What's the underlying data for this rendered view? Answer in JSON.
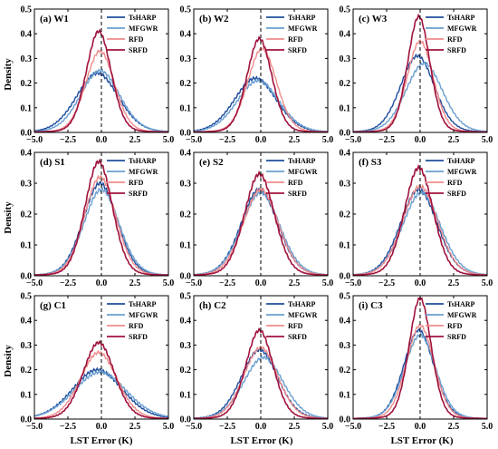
{
  "figure": {
    "ylabel": "Density",
    "xlabel": "LST Error (K)"
  },
  "series_styles": [
    {
      "name": "TsHARP",
      "color": "#1f4e9c"
    },
    {
      "name": "MFGWR",
      "color": "#6a9fd0"
    },
    {
      "name": "RFD",
      "color": "#f08c8c"
    },
    {
      "name": "SRFD",
      "color": "#a0123c"
    }
  ],
  "chart_data": [
    {
      "type": "line",
      "title": "(a) W1",
      "xlim": [
        -5,
        5
      ],
      "ylim": [
        0,
        0.5
      ],
      "xticks": [
        -5.0,
        -2.5,
        0.0,
        2.5,
        5.0
      ],
      "yticks": [
        0.0,
        0.1,
        0.2,
        0.3,
        0.4,
        0.5
      ],
      "legend": "top-right",
      "series": [
        {
          "name": "TsHARP",
          "peak": 0.24,
          "center": -0.3,
          "width": 1.6
        },
        {
          "name": "MFGWR",
          "peak": 0.25,
          "center": -0.1,
          "width": 1.5
        },
        {
          "name": "RFD",
          "peak": 0.33,
          "center": -0.1,
          "width": 1.1
        },
        {
          "name": "SRFD",
          "peak": 0.41,
          "center": -0.2,
          "width": 0.95
        }
      ]
    },
    {
      "type": "line",
      "title": "(b) W2",
      "xlim": [
        -5,
        5
      ],
      "ylim": [
        0,
        0.5
      ],
      "xticks": [
        -5.0,
        -2.5,
        0.0,
        2.5,
        5.0
      ],
      "yticks": [
        0.0,
        0.1,
        0.2,
        0.3,
        0.4,
        0.5
      ],
      "legend": "top-right",
      "series": [
        {
          "name": "TsHARP",
          "peak": 0.22,
          "center": -0.4,
          "width": 1.6
        },
        {
          "name": "MFGWR",
          "peak": 0.21,
          "center": -0.2,
          "width": 1.6
        },
        {
          "name": "RFD",
          "peak": 0.34,
          "center": 0.1,
          "width": 1.1
        },
        {
          "name": "SRFD",
          "peak": 0.38,
          "center": -0.1,
          "width": 0.95
        }
      ]
    },
    {
      "type": "line",
      "title": "(c) W3",
      "xlim": [
        -5,
        5
      ],
      "ylim": [
        0,
        0.5
      ],
      "xticks": [
        -5.0,
        -2.5,
        0.0,
        2.5,
        5.0
      ],
      "yticks": [
        0.0,
        0.1,
        0.2,
        0.3,
        0.4,
        0.5
      ],
      "legend": "top-right",
      "series": [
        {
          "name": "TsHARP",
          "peak": 0.31,
          "center": -0.2,
          "width": 1.3
        },
        {
          "name": "MFGWR",
          "peak": 0.28,
          "center": 0.3,
          "width": 1.4
        },
        {
          "name": "RFD",
          "peak": 0.37,
          "center": 0.0,
          "width": 1.0
        },
        {
          "name": "SRFD",
          "peak": 0.47,
          "center": -0.1,
          "width": 0.85
        }
      ]
    },
    {
      "type": "line",
      "title": "(d) S1",
      "xlim": [
        -5,
        5
      ],
      "ylim": [
        0,
        0.4
      ],
      "xticks": [
        -5.0,
        -2.5,
        0.0,
        2.5,
        5.0
      ],
      "yticks": [
        0.0,
        0.1,
        0.2,
        0.3,
        0.4
      ],
      "legend": "top-right",
      "series": [
        {
          "name": "TsHARP",
          "peak": 0.3,
          "center": -0.1,
          "width": 1.3
        },
        {
          "name": "MFGWR",
          "peak": 0.28,
          "center": 0.0,
          "width": 1.35
        },
        {
          "name": "RFD",
          "peak": 0.32,
          "center": -0.1,
          "width": 1.2
        },
        {
          "name": "SRFD",
          "peak": 0.37,
          "center": -0.2,
          "width": 1.05
        }
      ]
    },
    {
      "type": "line",
      "title": "(e) S2",
      "xlim": [
        -5,
        5
      ],
      "ylim": [
        0,
        0.4
      ],
      "xticks": [
        -5.0,
        -2.5,
        0.0,
        2.5,
        5.0
      ],
      "yticks": [
        0.0,
        0.1,
        0.2,
        0.3,
        0.4
      ],
      "legend": "top-right",
      "series": [
        {
          "name": "TsHARP",
          "peak": 0.28,
          "center": -0.1,
          "width": 1.4
        },
        {
          "name": "MFGWR",
          "peak": 0.27,
          "center": 0.0,
          "width": 1.45
        },
        {
          "name": "RFD",
          "peak": 0.28,
          "center": 0.0,
          "width": 1.35
        },
        {
          "name": "SRFD",
          "peak": 0.33,
          "center": -0.1,
          "width": 1.15
        }
      ]
    },
    {
      "type": "line",
      "title": "(f) S3",
      "xlim": [
        -5,
        5
      ],
      "ylim": [
        0,
        0.4
      ],
      "xticks": [
        -5.0,
        -2.5,
        0.0,
        2.5,
        5.0
      ],
      "yticks": [
        0.0,
        0.1,
        0.2,
        0.3,
        0.4
      ],
      "legend": "top-right",
      "series": [
        {
          "name": "TsHARP",
          "peak": 0.28,
          "center": -0.1,
          "width": 1.4
        },
        {
          "name": "MFGWR",
          "peak": 0.27,
          "center": 0.1,
          "width": 1.45
        },
        {
          "name": "RFD",
          "peak": 0.29,
          "center": 0.0,
          "width": 1.35
        },
        {
          "name": "SRFD",
          "peak": 0.35,
          "center": -0.1,
          "width": 1.1
        }
      ]
    },
    {
      "type": "line",
      "title": "(g) C1",
      "xlim": [
        -5,
        5
      ],
      "ylim": [
        0,
        0.5
      ],
      "xticks": [
        -5.0,
        -2.5,
        0.0,
        2.5,
        5.0
      ],
      "yticks": [
        0.0,
        0.1,
        0.2,
        0.3,
        0.4,
        0.5
      ],
      "legend": "top-right",
      "series": [
        {
          "name": "TsHARP",
          "peak": 0.2,
          "center": -0.3,
          "width": 1.9
        },
        {
          "name": "MFGWR",
          "peak": 0.19,
          "center": -0.1,
          "width": 2.0
        },
        {
          "name": "RFD",
          "peak": 0.27,
          "center": -0.2,
          "width": 1.4
        },
        {
          "name": "SRFD",
          "peak": 0.31,
          "center": -0.2,
          "width": 1.2
        }
      ]
    },
    {
      "type": "line",
      "title": "(h) C2",
      "xlim": [
        -5,
        5
      ],
      "ylim": [
        0,
        0.5
      ],
      "xticks": [
        -5.0,
        -2.5,
        0.0,
        2.5,
        5.0
      ],
      "yticks": [
        0.0,
        0.1,
        0.2,
        0.3,
        0.4,
        0.5
      ],
      "legend": "top-right",
      "series": [
        {
          "name": "TsHARP",
          "peak": 0.28,
          "center": -0.1,
          "width": 1.4
        },
        {
          "name": "MFGWR",
          "peak": 0.25,
          "center": 0.2,
          "width": 1.5
        },
        {
          "name": "RFD",
          "peak": 0.29,
          "center": 0.0,
          "width": 1.3
        },
        {
          "name": "SRFD",
          "peak": 0.36,
          "center": -0.1,
          "width": 1.05
        }
      ]
    },
    {
      "type": "line",
      "title": "(i) C3",
      "xlim": [
        -5,
        5
      ],
      "ylim": [
        0,
        0.5
      ],
      "xticks": [
        -5.0,
        -2.5,
        0.0,
        2.5,
        5.0
      ],
      "yticks": [
        0.0,
        0.1,
        0.2,
        0.3,
        0.4,
        0.5
      ],
      "legend": "top-right",
      "series": [
        {
          "name": "TsHARP",
          "peak": 0.36,
          "center": -0.1,
          "width": 1.15
        },
        {
          "name": "MFGWR",
          "peak": 0.34,
          "center": 0.0,
          "width": 1.2
        },
        {
          "name": "RFD",
          "peak": 0.38,
          "center": 0.0,
          "width": 1.05
        },
        {
          "name": "SRFD",
          "peak": 0.49,
          "center": 0.0,
          "width": 0.85
        }
      ]
    }
  ]
}
